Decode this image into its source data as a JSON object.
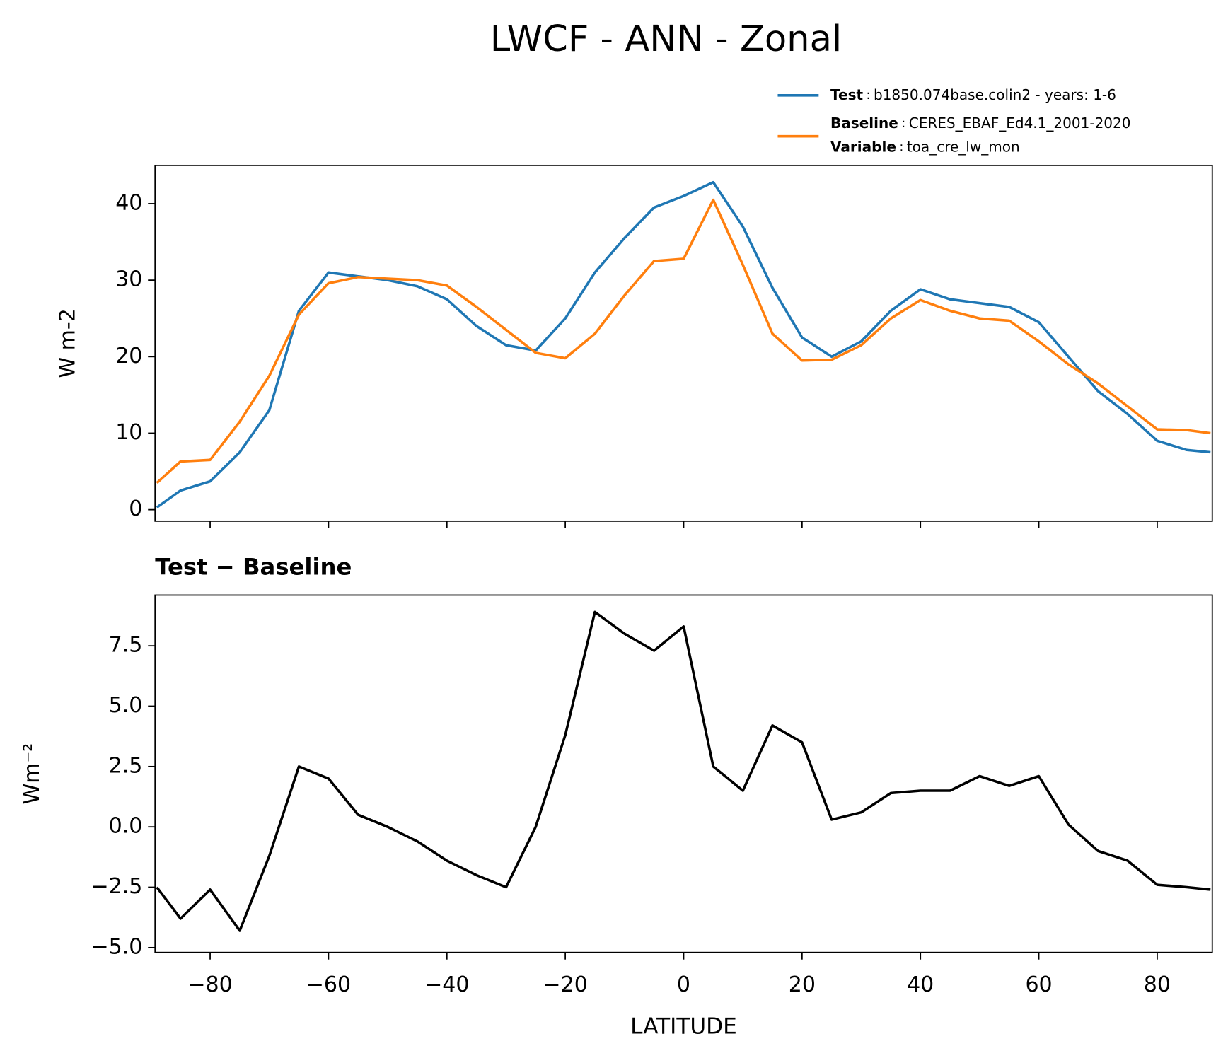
{
  "chart_data": [
    {
      "type": "line",
      "title": "LWCF - ANN - Zonal",
      "ylabel": "W m-2",
      "x": [
        -89,
        -85,
        -80,
        -75,
        -70,
        -65,
        -60,
        -55,
        -50,
        -45,
        -40,
        -35,
        -30,
        -25,
        -20,
        -15,
        -10,
        -5,
        0,
        5,
        10,
        15,
        20,
        25,
        30,
        35,
        40,
        45,
        50,
        55,
        60,
        65,
        70,
        75,
        80,
        85,
        89
      ],
      "series": [
        {
          "name": "Test",
          "separator": ":",
          "description": "b1850.074base.colin2 - years: 1-6",
          "color": "#1f77b4",
          "values": [
            0.3,
            2.5,
            3.7,
            7.5,
            13,
            26,
            31,
            30.5,
            30,
            29.2,
            27.5,
            24,
            21.5,
            20.8,
            25,
            31,
            35.5,
            39.5,
            41,
            42.8,
            37,
            29,
            22.5,
            20,
            22,
            26,
            28.8,
            27.5,
            27,
            26.5,
            24.5,
            20,
            15.5,
            12.5,
            9,
            7.8,
            7.5
          ]
        },
        {
          "name": "Baseline",
          "separator": ":",
          "description": "CERES_EBAF_Ed4.1_2001-2020",
          "color": "#ff7f0e",
          "values": [
            3.5,
            6.3,
            6.5,
            11.5,
            17.5,
            25.5,
            29.6,
            30.4,
            30.2,
            30,
            29.3,
            26.5,
            23.5,
            20.5,
            19.8,
            23,
            28,
            32.5,
            32.8,
            40.5,
            32,
            23,
            19.5,
            19.6,
            21.5,
            25,
            27.4,
            26,
            25,
            24.7,
            22,
            19,
            16.5,
            13.5,
            10.5,
            10.4,
            10
          ]
        }
      ],
      "legend_extra": {
        "name": "Variable",
        "separator": ":",
        "description": "toa_cre_lw_mon"
      },
      "xlim": [
        -89.3,
        89.3
      ],
      "xticks": [
        -80,
        -60,
        -40,
        -20,
        0,
        20,
        40,
        60,
        80
      ],
      "ylim": [
        -1.5,
        45
      ],
      "yticks": [
        0,
        10,
        20,
        30,
        40
      ],
      "legend": "upper right"
    },
    {
      "type": "line",
      "title": "Test − Baseline",
      "ylabel": "Wm⁻²",
      "xlabel": "LATITUDE",
      "x": [
        -89,
        -85,
        -80,
        -75,
        -70,
        -65,
        -60,
        -55,
        -50,
        -45,
        -40,
        -35,
        -30,
        -25,
        -20,
        -15,
        -10,
        -5,
        0,
        5,
        10,
        15,
        20,
        25,
        30,
        35,
        40,
        45,
        50,
        55,
        60,
        65,
        70,
        75,
        80,
        85,
        89
      ],
      "series": [
        {
          "color": "#000000",
          "values": [
            -2.5,
            -3.8,
            -2.6,
            -4.3,
            -1.2,
            2.5,
            2.0,
            0.5,
            0,
            -0.6,
            -1.4,
            -2.0,
            -2.5,
            0,
            3.8,
            8.9,
            8.0,
            7.3,
            8.3,
            2.5,
            1.5,
            4.2,
            3.5,
            0.3,
            0.6,
            1.4,
            1.5,
            1.5,
            2.1,
            1.7,
            2.1,
            0.1,
            -1.0,
            -1.4,
            -2.4,
            -2.5,
            -2.6
          ]
        }
      ],
      "xlim": [
        -89.3,
        89.3
      ],
      "xticks": [
        {
          "value": -80,
          "label": "−80"
        },
        {
          "value": -60,
          "label": "−60"
        },
        {
          "value": -40,
          "label": "−40"
        },
        {
          "value": -20,
          "label": "−20"
        },
        0,
        20,
        40,
        60,
        80
      ],
      "ylim": [
        -5.2,
        9.6
      ],
      "yticks": [
        {
          "value": -5,
          "label": "−5.0"
        },
        {
          "value": -2.5,
          "label": "−2.5"
        },
        {
          "value": 0,
          "label": "0.0"
        },
        2.5,
        {
          "value": 5,
          "label": "5.0"
        },
        7.5
      ]
    }
  ]
}
